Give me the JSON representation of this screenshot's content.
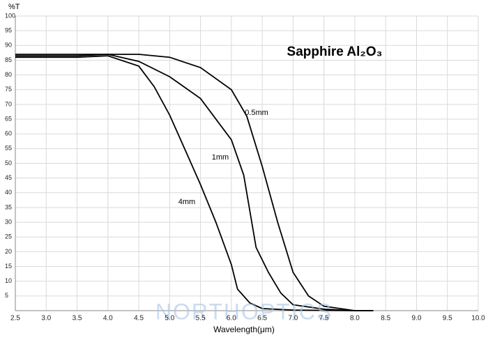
{
  "chart_data": {
    "type": "line",
    "title": "Sapphire Al₂O₃",
    "y_label": "%T",
    "x_label": "Wavelength(μm)",
    "watermark": "NORTHOPTICS",
    "xlim": [
      2.5,
      10.0
    ],
    "ylim": [
      0,
      100
    ],
    "grid": true,
    "xticks": [
      2.5,
      {
        "value": 3,
        "label": "3.0"
      },
      3.5,
      {
        "value": 4,
        "label": "4.0"
      },
      4.5,
      {
        "value": 5,
        "label": "5.0"
      },
      5.5,
      {
        "value": 6,
        "label": "6.0"
      },
      6.5,
      {
        "value": 7,
        "label": "7.0"
      },
      7.5,
      {
        "value": 8,
        "label": "8.0"
      },
      8.5,
      {
        "value": 9,
        "label": "9.0"
      },
      9.5,
      {
        "value": 10,
        "label": "10.0"
      }
    ],
    "yticks": [
      5,
      10,
      15,
      20,
      25,
      30,
      35,
      40,
      45,
      50,
      55,
      60,
      65,
      70,
      75,
      80,
      85,
      90,
      95,
      100
    ],
    "series": [
      {
        "name": "0.5mm",
        "color": "#000000",
        "x": [
          2.5,
          3.5,
          4.0,
          4.5,
          5.0,
          5.5,
          6.0,
          6.25,
          6.5,
          6.75,
          7.0,
          7.25,
          7.5,
          8.0,
          8.3
        ],
        "values": [
          87,
          87,
          87,
          87,
          86,
          82.5,
          75,
          66,
          49,
          30,
          13,
          5,
          1.5,
          0,
          0
        ]
      },
      {
        "name": "1mm",
        "color": "#000000",
        "x": [
          2.5,
          3.5,
          4.0,
          4.5,
          5.0,
          5.5,
          6.0,
          6.2,
          6.4,
          6.6,
          6.8,
          7.0,
          7.5,
          8.0,
          8.3
        ],
        "values": [
          86.5,
          86.5,
          87,
          84.6,
          79.4,
          72,
          58,
          46,
          21.5,
          13,
          6,
          2,
          0.5,
          0,
          0
        ]
      },
      {
        "name": "4mm",
        "color": "#000000",
        "x": [
          2.5,
          3.5,
          4.0,
          4.5,
          4.75,
          5.0,
          5.25,
          5.5,
          5.75,
          6.0,
          6.1,
          6.3,
          6.5,
          7.0,
          8.0,
          8.3
        ],
        "values": [
          86,
          86,
          86.5,
          83,
          76,
          66.4,
          54.6,
          42.8,
          30,
          15.6,
          7.3,
          2.6,
          0.7,
          0.2,
          0,
          0
        ]
      }
    ]
  }
}
